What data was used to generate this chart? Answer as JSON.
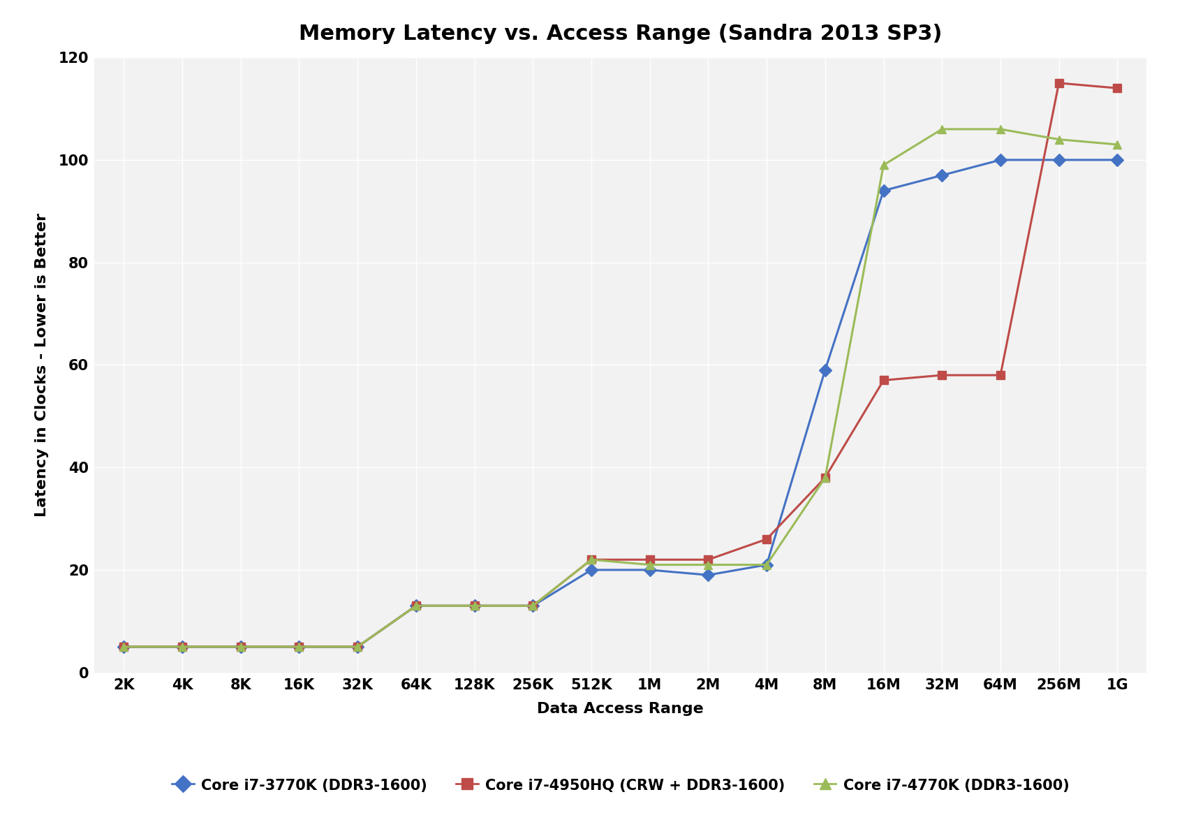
{
  "title": "Memory Latency vs. Access Range (Sandra 2013 SP3)",
  "xlabel": "Data Access Range",
  "ylabel": "Latency in Clocks - Lower is Better",
  "x_labels": [
    "2K",
    "4K",
    "8K",
    "16K",
    "32K",
    "64K",
    "128K",
    "256K",
    "512K",
    "1M",
    "2M",
    "4M",
    "8M",
    "16M",
    "32M",
    "64M",
    "256M",
    "1G"
  ],
  "series": [
    {
      "label": "Core i7-3770K (DDR3-1600)",
      "color": "#4472C4",
      "marker": "D",
      "values": [
        5,
        5,
        5,
        5,
        5,
        13,
        13,
        13,
        20,
        20,
        19,
        21,
        59,
        94,
        97,
        100,
        100,
        100
      ]
    },
    {
      "label": "Core i7-4950HQ (CRW + DDR3-1600)",
      "color": "#BE4B48",
      "marker": "s",
      "values": [
        5,
        5,
        5,
        5,
        5,
        13,
        13,
        13,
        22,
        22,
        22,
        26,
        38,
        57,
        58,
        58,
        115,
        114
      ]
    },
    {
      "label": "Core i7-4770K (DDR3-1600)",
      "color": "#9BBB59",
      "marker": "^",
      "values": [
        5,
        5,
        5,
        5,
        5,
        13,
        13,
        13,
        22,
        21,
        21,
        21,
        38,
        99,
        106,
        106,
        104,
        103
      ]
    }
  ],
  "ylim": [
    0,
    120
  ],
  "yticks": [
    0,
    20,
    40,
    60,
    80,
    100,
    120
  ],
  "background_color": "#FFFFFF",
  "plot_bg_color": "#F2F2F2",
  "grid_color": "#FFFFFF",
  "axis_color": "#808080",
  "title_fontsize": 22,
  "label_fontsize": 16,
  "tick_fontsize": 15,
  "legend_fontsize": 15,
  "linewidth": 2.2,
  "markersize": 9
}
